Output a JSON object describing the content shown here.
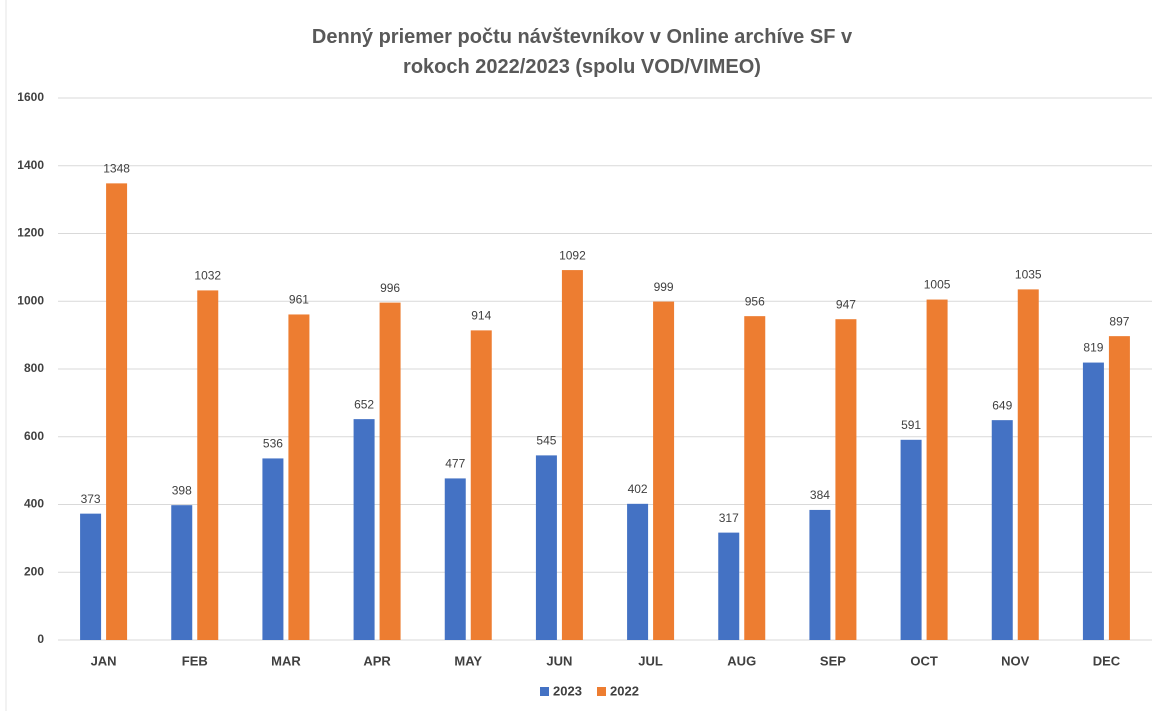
{
  "chart_data": {
    "type": "bar",
    "title": "Denný priemer počtu návštevníkov v Online archíve SF v rokoch 2022/2023 (spolu VOD/VIMEO)",
    "categories": [
      "JAN",
      "FEB",
      "MAR",
      "APR",
      "MAY",
      "JUN",
      "JUL",
      "AUG",
      "SEP",
      "OCT",
      "NOV",
      "DEC"
    ],
    "series": [
      {
        "name": "2023",
        "color": "#4472c4",
        "values": [
          373,
          398,
          536,
          652,
          477,
          545,
          402,
          317,
          384,
          591,
          649,
          819
        ]
      },
      {
        "name": "2022",
        "color": "#ed7d31",
        "values": [
          1348,
          1032,
          961,
          996,
          914,
          1092,
          999,
          956,
          947,
          1005,
          1035,
          897
        ]
      }
    ],
    "ylim": [
      0,
      1600
    ],
    "yticks": [
      0,
      200,
      400,
      600,
      800,
      1000,
      1200,
      1400,
      1600
    ],
    "grid": true,
    "legend": "bottom"
  }
}
